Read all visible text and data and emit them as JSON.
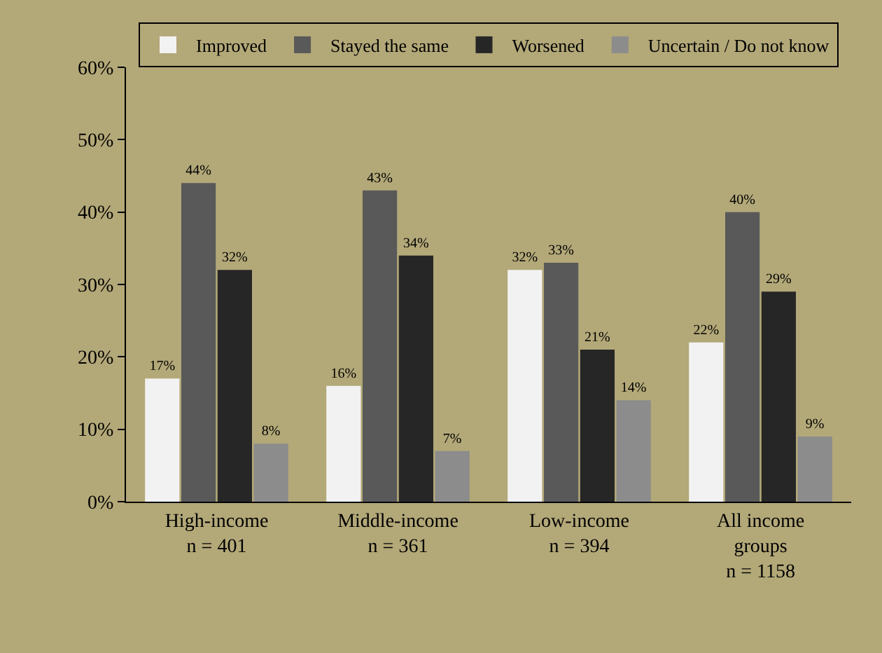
{
  "chart_data": {
    "type": "bar",
    "categories": [
      "High-income\nn = 401",
      "Middle-income\nn = 361",
      "Low-income\nn = 394",
      "All income\ngroups\nn = 1158"
    ],
    "series": [
      {
        "name": "Improved",
        "color": "#f2f2f2",
        "values": [
          17,
          16,
          32,
          22
        ],
        "value_labels": [
          "17%",
          "16%",
          "32%",
          "22%"
        ]
      },
      {
        "name": "Stayed the same",
        "color": "#595959",
        "values": [
          44,
          43,
          33,
          40
        ],
        "value_labels": [
          "44%",
          "43%",
          "33%",
          "40%"
        ]
      },
      {
        "name": "Worsened",
        "color": "#262626",
        "values": [
          32,
          34,
          21,
          29
        ],
        "value_labels": [
          "32%",
          "34%",
          "21%",
          "29%"
        ]
      },
      {
        "name": "Uncertain / Do not know",
        "color": "#8c8c8c",
        "values": [
          8,
          7,
          14,
          9
        ],
        "value_labels": [
          "8%",
          "7%",
          "14%",
          "9%"
        ]
      }
    ],
    "ylim": [
      0,
      60
    ],
    "yticks": [
      {
        "value": 0,
        "label": "0%"
      },
      {
        "value": 10,
        "label": "10%"
      },
      {
        "value": 20,
        "label": "20%"
      },
      {
        "value": 30,
        "label": "30%"
      },
      {
        "value": 40,
        "label": "40%"
      },
      {
        "value": 50,
        "label": "50%"
      },
      {
        "value": 60,
        "label": "60%"
      }
    ],
    "grid": false,
    "legend": "top"
  }
}
